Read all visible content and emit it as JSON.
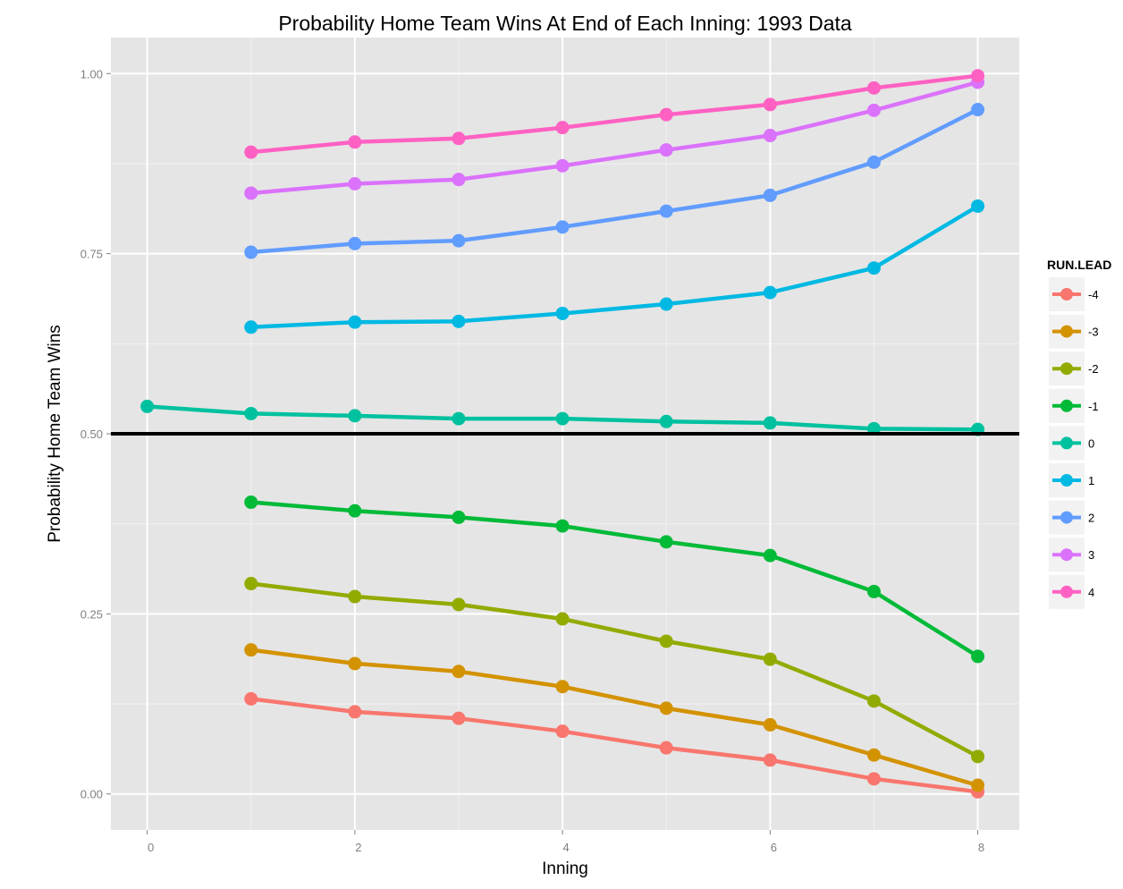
{
  "chart_data": {
    "type": "line",
    "title": "Probability Home Team Wins At End of Each Inning: 1993 Data",
    "xlabel": "Inning",
    "ylabel": "Probability Home Team Wins",
    "xlim": [
      -0.35,
      8.4
    ],
    "ylim": [
      -0.05,
      1.05
    ],
    "x_ticks": [
      0,
      2,
      4,
      6,
      8
    ],
    "x_tick_labels": [
      "0",
      "2",
      "4",
      "6",
      "8"
    ],
    "y_ticks": [
      0,
      0.25,
      0.5,
      0.75,
      1.0
    ],
    "y_tick_labels": [
      "0.00",
      "0.25",
      "0.50",
      "0.75",
      "1.00"
    ],
    "grid": true,
    "reference_line": {
      "y": 0.5,
      "color": "#000000"
    },
    "legend": {
      "title": "RUN.LEAD",
      "placement": "right"
    },
    "series": [
      {
        "name": "-4",
        "color": "#F8766D",
        "x": [
          1,
          2,
          3,
          4,
          5,
          6,
          7,
          8
        ],
        "y": [
          0.132,
          0.114,
          0.105,
          0.087,
          0.064,
          0.047,
          0.021,
          0.003
        ]
      },
      {
        "name": "-3",
        "color": "#D39200",
        "x": [
          1,
          2,
          3,
          4,
          5,
          6,
          7,
          8
        ],
        "y": [
          0.2,
          0.181,
          0.17,
          0.149,
          0.119,
          0.096,
          0.054,
          0.012
        ]
      },
      {
        "name": "-2",
        "color": "#93AA00",
        "x": [
          1,
          2,
          3,
          4,
          5,
          6,
          7,
          8
        ],
        "y": [
          0.292,
          0.274,
          0.263,
          0.243,
          0.212,
          0.187,
          0.129,
          0.052
        ]
      },
      {
        "name": "-1",
        "color": "#00BA38",
        "x": [
          1,
          2,
          3,
          4,
          5,
          6,
          7,
          8
        ],
        "y": [
          0.405,
          0.393,
          0.384,
          0.372,
          0.35,
          0.331,
          0.281,
          0.191
        ]
      },
      {
        "name": "0",
        "color": "#00C19F",
        "x": [
          0,
          1,
          2,
          3,
          4,
          5,
          6,
          7,
          8
        ],
        "y": [
          0.538,
          0.528,
          0.525,
          0.521,
          0.521,
          0.517,
          0.515,
          0.507,
          0.506
        ]
      },
      {
        "name": "1",
        "color": "#00B9E3",
        "x": [
          1,
          2,
          3,
          4,
          5,
          6,
          7,
          8
        ],
        "y": [
          0.648,
          0.655,
          0.656,
          0.667,
          0.68,
          0.696,
          0.73,
          0.816
        ]
      },
      {
        "name": "2",
        "color": "#619CFF",
        "x": [
          1,
          2,
          3,
          4,
          5,
          6,
          7,
          8
        ],
        "y": [
          0.752,
          0.764,
          0.768,
          0.787,
          0.809,
          0.831,
          0.877,
          0.95
        ]
      },
      {
        "name": "3",
        "color": "#DB72FB",
        "x": [
          1,
          2,
          3,
          4,
          5,
          6,
          7,
          8
        ],
        "y": [
          0.834,
          0.847,
          0.853,
          0.872,
          0.894,
          0.914,
          0.949,
          0.988
        ]
      },
      {
        "name": "4",
        "color": "#FF61C3",
        "x": [
          1,
          2,
          3,
          4,
          5,
          6,
          7,
          8
        ],
        "y": [
          0.891,
          0.905,
          0.91,
          0.925,
          0.943,
          0.957,
          0.98,
          0.997
        ]
      }
    ]
  }
}
